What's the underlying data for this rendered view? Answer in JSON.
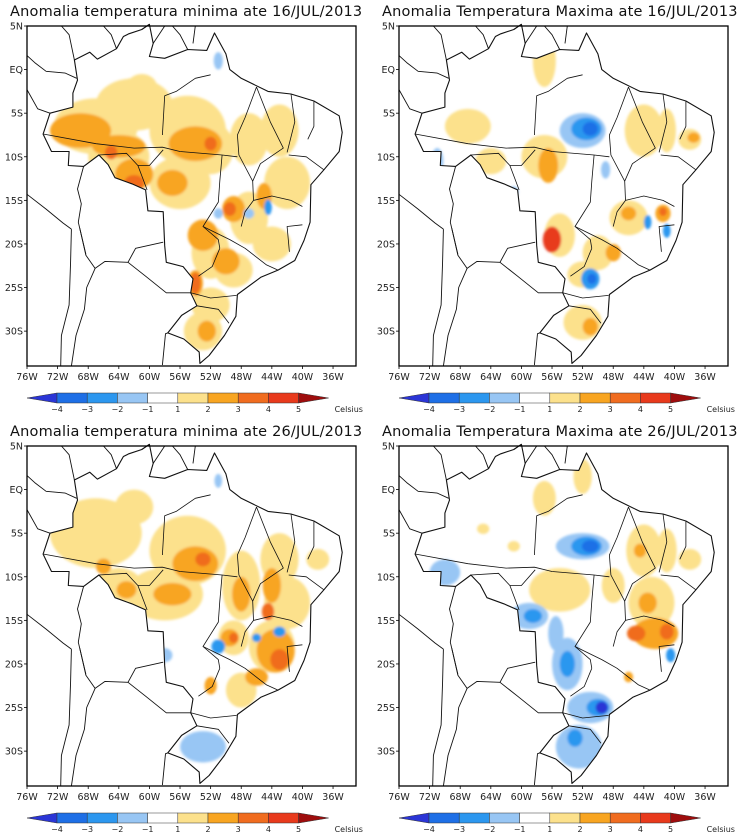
{
  "panels": [
    {
      "title": "Anomalia temperatura minima ate 16/JUL/2013",
      "variable": "minimum temperature anomaly",
      "date": "16/JUL/2013",
      "pattern": "tmin1"
    },
    {
      "title": "Anomalia Temperatura Maxima ate 16/JUL/2013",
      "variable": "maximum temperature anomaly",
      "date": "16/JUL/2013",
      "pattern": "tmax1"
    },
    {
      "title": "Anomalia temperatura minima ate 26/JUL/2013",
      "variable": "minimum temperature anomaly",
      "date": "26/JUL/2013",
      "pattern": "tmin2"
    },
    {
      "title": "Anomalia Temperatura Maxima ate 26/JUL/2013",
      "variable": "maximum temperature anomaly",
      "date": "26/JUL/2013",
      "pattern": "tmax2"
    }
  ],
  "axes": {
    "lat_labels": [
      "5N",
      "EQ",
      "5S",
      "10S",
      "15S",
      "20S",
      "25S",
      "30S"
    ],
    "lon_labels": [
      "76W",
      "72W",
      "68W",
      "64W",
      "60W",
      "56W",
      "52W",
      "48W",
      "44W",
      "40W",
      "36W"
    ],
    "lat_range": [
      5,
      -34
    ],
    "lon_range": [
      -76,
      -33
    ]
  },
  "colorbar": {
    "unit_label": "Celsius",
    "tick_labels": [
      "-4",
      "-3",
      "-2",
      "-1",
      "1",
      "2",
      "3",
      "4",
      "5"
    ],
    "colors": [
      "#2b35d6",
      "#1e6fe6",
      "#2c97ef",
      "#98c6f4",
      "#ffffff",
      "#fce18c",
      "#f8a521",
      "#f06c1f",
      "#e83a1c",
      "#9e0d0d"
    ]
  },
  "colors": {
    "border": "#000000",
    "coast": "#111111"
  }
}
